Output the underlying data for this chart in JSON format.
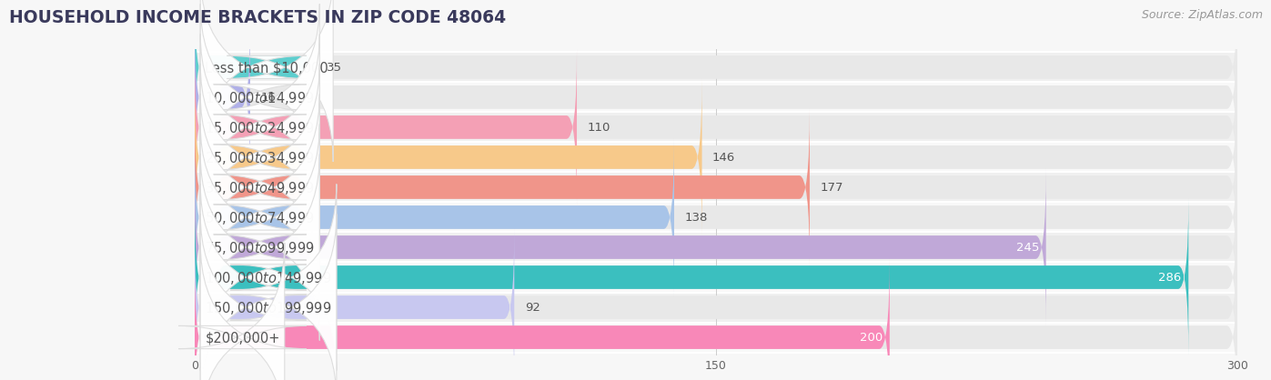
{
  "title": "HOUSEHOLD INCOME BRACKETS IN ZIP CODE 48064",
  "source": "Source: ZipAtlas.com",
  "categories": [
    "Less than $10,000",
    "$10,000 to $14,999",
    "$15,000 to $24,999",
    "$25,000 to $34,999",
    "$35,000 to $49,999",
    "$50,000 to $74,999",
    "$75,000 to $99,999",
    "$100,000 to $149,999",
    "$150,000 to $199,999",
    "$200,000+"
  ],
  "values": [
    35,
    16,
    110,
    146,
    177,
    138,
    245,
    286,
    92,
    200
  ],
  "bar_colors": [
    "#5ecece",
    "#b0b0e8",
    "#f4a0b5",
    "#f7c98a",
    "#f0958a",
    "#a8c4e8",
    "#c0a8d8",
    "#3bbfbf",
    "#c8c8f0",
    "#f888b8"
  ],
  "xlim": [
    0,
    300
  ],
  "xticks": [
    0,
    150,
    300
  ],
  "background_color": "#f7f7f7",
  "bar_background_color": "#e8e8e8",
  "row_bg_odd": "#f0f0f0",
  "row_bg_even": "#f8f8f8",
  "label_color_dark": "#555555",
  "label_color_light": "#ffffff",
  "title_fontsize": 13.5,
  "source_fontsize": 9,
  "cat_fontsize": 10.5,
  "value_fontsize": 9.5,
  "tick_fontsize": 9,
  "bar_height": 0.78,
  "n": 10
}
